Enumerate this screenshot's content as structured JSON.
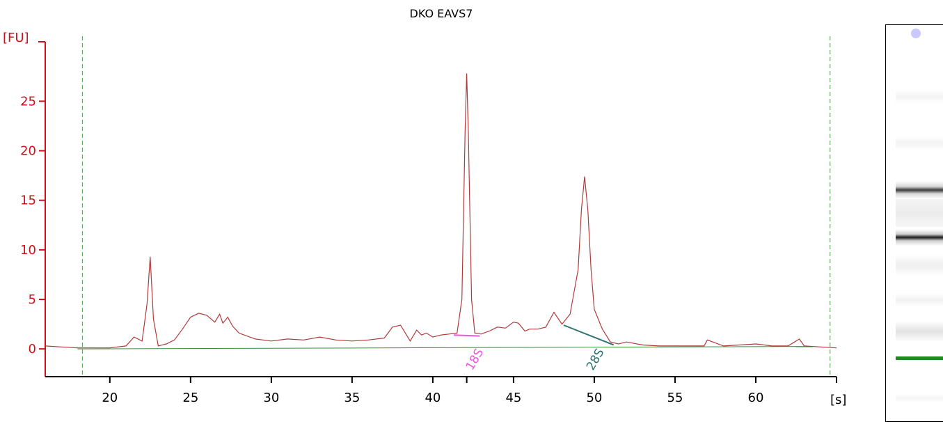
{
  "colors": {
    "axis": "#d0101a",
    "trace": "#b03a3a",
    "baseline": "#3c8a3c",
    "marker_dash": "#4c9a4c",
    "label_18s": "#ee55dd",
    "label_28s": "#2f7070",
    "gel_marker": "#1e8a1e"
  },
  "chart_data": {
    "type": "line",
    "title": "DKO EAVS7",
    "xlabel": "[s]",
    "ylabel": "[FU]",
    "xlim": [
      16,
      65
    ],
    "ylim": [
      -2.8,
      31
    ],
    "xticks": [
      "20",
      "25",
      "30",
      "35",
      "40",
      "45",
      "50",
      "55",
      "60"
    ],
    "yticks": [
      "0",
      "5",
      "10",
      "15",
      "20",
      "25"
    ],
    "grid": false,
    "dashed_markers_x": [
      18.3,
      64.6
    ],
    "series": [
      {
        "x": [
          16,
          17,
          18,
          19,
          20,
          21,
          21.5,
          22,
          22.3,
          22.5,
          22.7,
          23,
          23.5,
          24,
          24.5,
          25,
          25.5,
          26,
          26.5,
          26.8,
          27,
          27.3,
          27.6,
          28,
          29,
          30,
          31,
          32,
          33,
          34,
          35,
          36,
          37,
          37.5,
          38,
          38.3,
          38.6,
          39,
          39.3,
          39.6,
          40,
          40.5,
          41,
          41.5,
          41.8,
          42,
          42.1,
          42.2,
          42.4,
          42.6,
          43,
          43.5,
          44,
          44.5,
          45,
          45.3,
          45.7,
          46,
          46.5,
          47,
          47.5,
          48,
          48.5,
          49,
          49.2,
          49.4,
          49.6,
          49.8,
          50,
          50.5,
          51,
          51.5,
          52,
          53,
          54,
          55,
          56,
          56.8,
          57,
          58,
          59,
          60,
          61,
          62,
          62.7,
          63,
          64,
          65
        ],
        "y": [
          0.3,
          0.2,
          0.1,
          0.1,
          0.1,
          0.3,
          1.2,
          0.8,
          4.5,
          9.3,
          3.0,
          0.3,
          0.5,
          0.9,
          2.0,
          3.2,
          3.6,
          3.4,
          2.7,
          3.5,
          2.6,
          3.2,
          2.3,
          1.6,
          1.0,
          0.8,
          1.0,
          0.9,
          1.2,
          0.9,
          0.8,
          0.9,
          1.1,
          2.2,
          2.4,
          1.6,
          0.8,
          1.9,
          1.4,
          1.6,
          1.2,
          1.4,
          1.5,
          1.6,
          5.0,
          22.0,
          27.8,
          22.0,
          5.0,
          1.6,
          1.5,
          1.8,
          2.2,
          2.1,
          2.7,
          2.6,
          1.8,
          2.0,
          2.0,
          2.2,
          3.7,
          2.5,
          3.5,
          8.0,
          14.0,
          17.4,
          14.0,
          8.0,
          4.0,
          2.0,
          0.7,
          0.5,
          0.7,
          0.4,
          0.3,
          0.3,
          0.3,
          0.3,
          0.9,
          0.3,
          0.4,
          0.5,
          0.3,
          0.3,
          1.0,
          0.3,
          0.2,
          0.1
        ]
      }
    ],
    "peak_labels": [
      {
        "label": "18S",
        "x": 42.1
      },
      {
        "label": "28S",
        "x": 50.0
      }
    ]
  }
}
